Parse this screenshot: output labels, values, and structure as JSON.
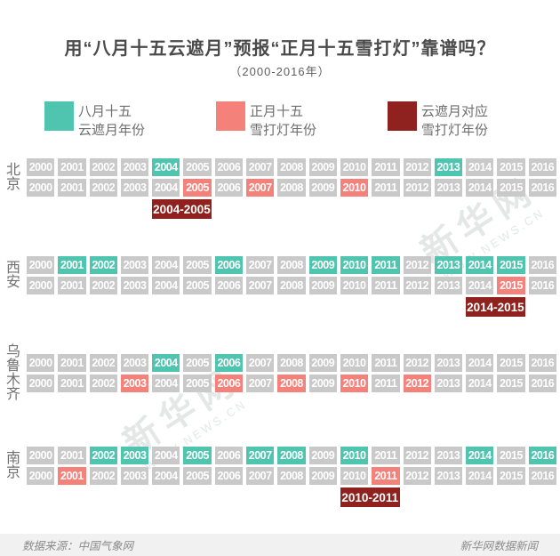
{
  "title": "用“八月十五云遮月”预报“正月十五雪打灯”靠谱吗？",
  "subtitle": "（2000-2016年）",
  "colors": {
    "cloud_moon_teal": "#4FC5AF",
    "snow_lantern_pink": "#F5817B",
    "match_dark_red": "#8F221E",
    "inactive_gray": "#C9C9C9"
  },
  "legend": [
    {
      "color": "#4FC5AF",
      "line1": "八月十五",
      "line2": "云遮月年份"
    },
    {
      "color": "#F5817B",
      "line1": "正月十五",
      "line2": "雪打灯年份"
    },
    {
      "color": "#8F221E",
      "line1": "云遮月对应",
      "line2": "雪打灯年份"
    }
  ],
  "chart_data": {
    "type": "heatmap",
    "title": "用“八月十五云遮月”预报“正月十五雪打灯”靠谱吗？",
    "subtitle": "（2000-2016年）",
    "years": [
      2000,
      2001,
      2002,
      2003,
      2004,
      2005,
      2006,
      2007,
      2008,
      2009,
      2010,
      2011,
      2012,
      2013,
      2014,
      2015,
      2016
    ],
    "row_meaning": {
      "top_row": "八月十五云遮月年份",
      "bottom_row": "正月十五雪打灯年份",
      "badge": "云遮月对应雪打灯年份"
    },
    "cities": [
      {
        "name": "北京",
        "cloud_moon_years": [
          2004,
          2013
        ],
        "snow_lantern_years": [
          2005,
          2007,
          2010
        ],
        "match": "2004-2005"
      },
      {
        "name": "西安",
        "cloud_moon_years": [
          2001,
          2002,
          2006,
          2009,
          2010,
          2011,
          2013,
          2014,
          2015
        ],
        "snow_lantern_years": [
          2015
        ],
        "match": "2014-2015"
      },
      {
        "name": "乌鲁木齐",
        "cloud_moon_years": [
          2004,
          2006
        ],
        "snow_lantern_years": [
          2003,
          2006,
          2008,
          2010,
          2012
        ],
        "match": null
      },
      {
        "name": "南京",
        "cloud_moon_years": [
          2002,
          2003,
          2005,
          2007,
          2008,
          2010,
          2014,
          2016
        ],
        "snow_lantern_years": [
          2001,
          2011
        ],
        "match": "2010-2011"
      }
    ]
  },
  "watermark": {
    "text": "新华网",
    "subtext": "WWW.NEWS.CN"
  },
  "footer": {
    "source": "数据来源：中国气象网",
    "credit": "新华网数据新闻"
  }
}
